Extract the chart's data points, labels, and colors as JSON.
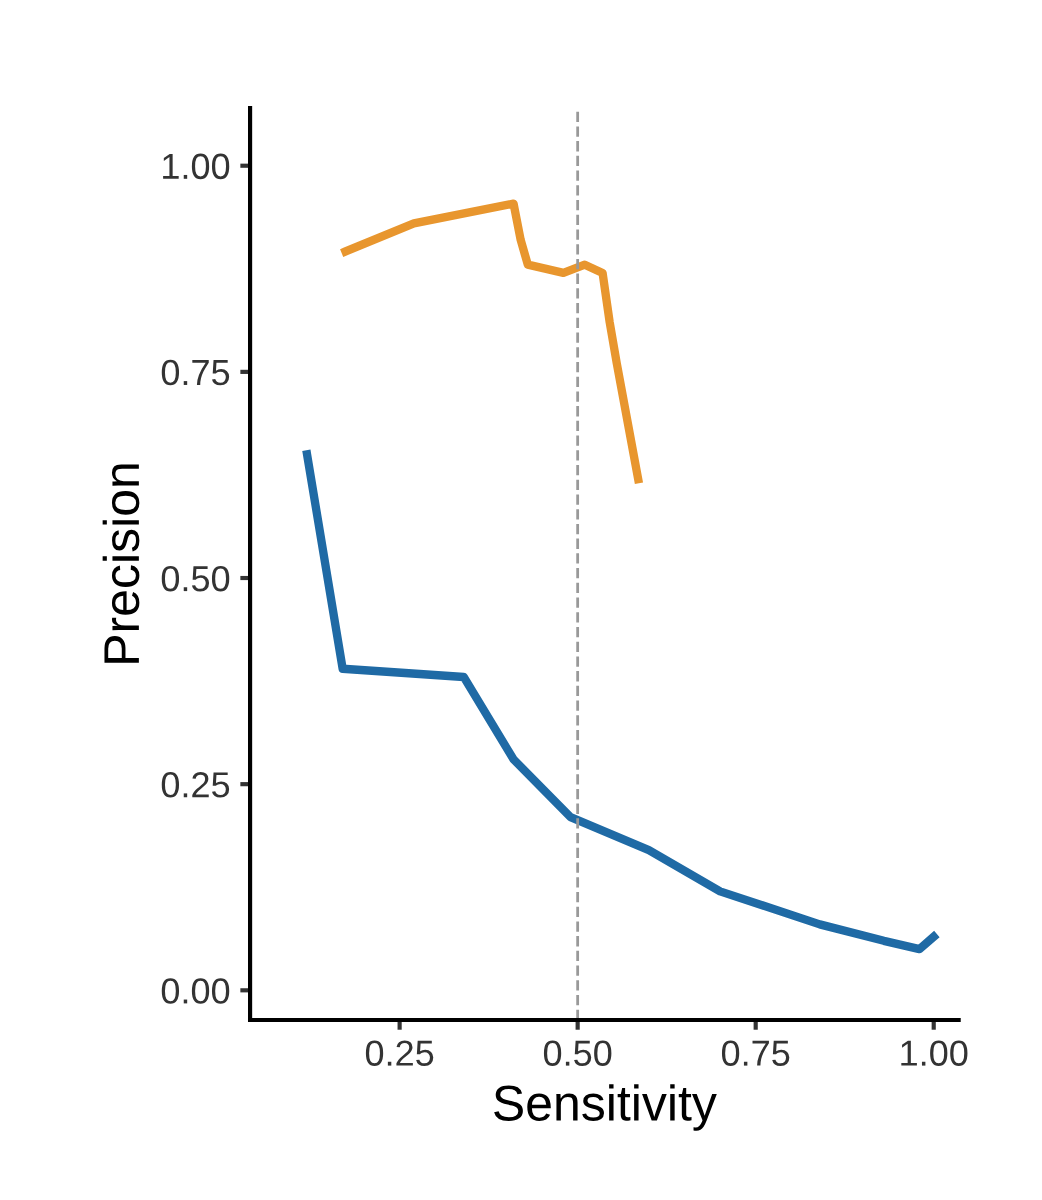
{
  "chart_data": {
    "type": "line",
    "xlabel": "Sensitivity",
    "ylabel": "Precision",
    "xlim": [
      0.04,
      1.035
    ],
    "ylim": [
      -0.036,
      1.07
    ],
    "xticks": [
      {
        "value": 0.25,
        "label": "0.25"
      },
      {
        "value": 0.5,
        "label": "0.50"
      },
      {
        "value": 0.75,
        "label": "0.75"
      },
      {
        "value": 1.0,
        "label": "1.00"
      }
    ],
    "yticks": [
      {
        "value": 0.0,
        "label": "0.00"
      },
      {
        "value": 0.25,
        "label": "0.25"
      },
      {
        "value": 0.5,
        "label": "0.50"
      },
      {
        "value": 0.75,
        "label": "0.75"
      },
      {
        "value": 1.0,
        "label": "1.00"
      }
    ],
    "grid": false,
    "line_style": "solid",
    "marker": "none",
    "ref_lines": [
      {
        "axis": "x",
        "value": 0.5,
        "color": "#999999",
        "line_style": "dashed"
      }
    ],
    "series": [
      {
        "color": "#e8962e",
        "x": [
          0.174,
          0.27,
          0.41,
          0.42,
          0.43,
          0.48,
          0.51,
          0.535,
          0.545,
          0.555,
          0.585
        ],
        "values": [
          0.896,
          0.93,
          0.954,
          0.91,
          0.88,
          0.87,
          0.88,
          0.87,
          0.81,
          0.76,
          0.62
        ]
      },
      {
        "color": "#1f6aa5",
        "x": [
          0.12,
          0.17,
          0.34,
          0.41,
          0.49,
          0.6,
          0.7,
          0.84,
          0.93,
          0.98,
          1.0
        ],
        "values": [
          0.65,
          0.39,
          0.38,
          0.28,
          0.21,
          0.17,
          0.12,
          0.08,
          0.06,
          0.05,
          0.065
        ]
      }
    ]
  }
}
